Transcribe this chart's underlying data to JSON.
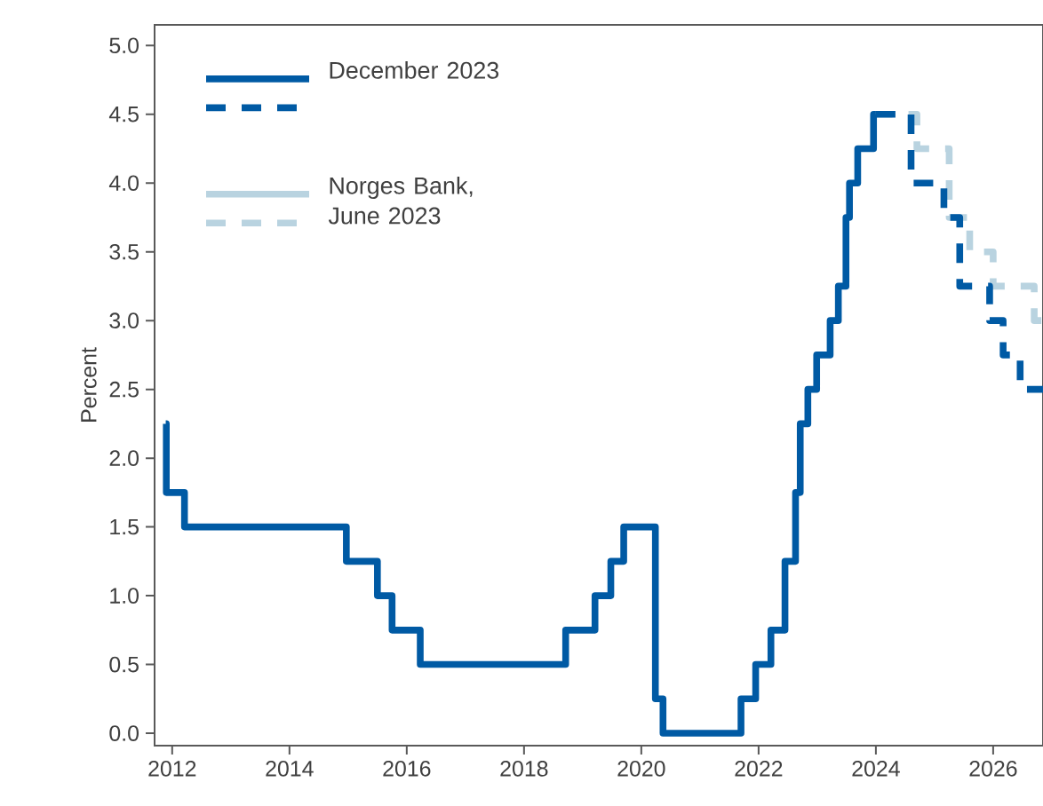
{
  "chart_data": {
    "type": "step",
    "ylabel": "Percent",
    "xlim": [
      2011.7,
      2026.85
    ],
    "xticks": [
      2012,
      2014,
      2016,
      2018,
      2020,
      2022,
      2024,
      2026
    ],
    "ylim": [
      -0.09,
      5.15
    ],
    "yticks": [
      {
        "value": 0,
        "label": "0.0"
      },
      {
        "value": 0.5,
        "label": "0.5"
      },
      {
        "value": 1,
        "label": "1.0"
      },
      {
        "value": 1.5,
        "label": "1.5"
      },
      {
        "value": 2,
        "label": "2.0"
      },
      {
        "value": 2.5,
        "label": "2.5"
      },
      {
        "value": 3,
        "label": "3.0"
      },
      {
        "value": 3.5,
        "label": "3.5"
      },
      {
        "value": 4,
        "label": "4.0"
      },
      {
        "value": 4.5,
        "label": "4.5"
      },
      {
        "value": 5,
        "label": "5.0"
      }
    ],
    "legend": "top left",
    "series": [
      {
        "name": "Norges Bank, June 2023",
        "color": "#b9d3e0",
        "line_style": "dashed",
        "x": [
          2023.95,
          2024.7,
          2025.25,
          2025.6,
          2026.0,
          2026.7,
          2026.85
        ],
        "values": [
          4.5,
          4.25,
          3.75,
          3.5,
          3.25,
          3.0,
          3.0
        ]
      },
      {
        "name": "December 2023",
        "color": "#005aa4",
        "line_style": "solid",
        "x": [
          2011.89,
          2011.9,
          2012.21,
          2014.97,
          2015.5,
          2015.75,
          2016.23,
          2018.71,
          2019.21,
          2019.48,
          2019.7,
          2020.24,
          2020.37,
          2021.7,
          2021.95,
          2022.21,
          2022.45,
          2022.63,
          2022.71,
          2022.84,
          2022.99,
          2023.22,
          2023.36,
          2023.49,
          2023.55,
          2023.69,
          2023.96,
          2024.0
        ],
        "values": [
          2.25,
          1.75,
          1.5,
          1.25,
          1.0,
          0.75,
          0.5,
          0.75,
          1.0,
          1.25,
          1.5,
          0.25,
          0,
          0.25,
          0.5,
          0.75,
          1.25,
          1.75,
          2.25,
          2.5,
          2.75,
          3.0,
          3.25,
          3.75,
          4.0,
          4.25,
          4.5,
          4.5
        ]
      },
      {
        "color": "#005aa4",
        "line_style": "dashed",
        "x": [
          2024.0,
          2024.6,
          2025.16,
          2025.43,
          2025.94,
          2026.17,
          2026.46,
          2026.85
        ],
        "values": [
          4.5,
          4.0,
          3.75,
          3.25,
          3.0,
          2.75,
          2.5,
          2.5
        ]
      }
    ]
  }
}
